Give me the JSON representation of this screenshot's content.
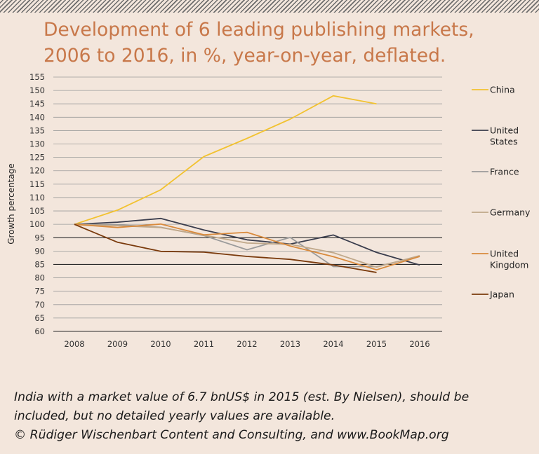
{
  "title_line1": "Development of 6 leading publishing markets,",
  "title_line2": "2006 to 2016, in %, year-on-year, deflated.",
  "footnote": {
    "line1": "India with a market value of 6.7 bnUS$ in 2015 (est. By Nielsen), should be",
    "line2": "included, but no detailed yearly values are available.",
    "line3": "© Rüdiger Wischenbart Content and Consulting, and www.BookMap.org"
  },
  "chart_data": {
    "type": "line",
    "title": "Development of 6 leading publishing markets, 2006 to 2016, in %, year-on-year, deflated.",
    "xlabel": "",
    "ylabel": "Growth percentage",
    "categories": [
      "2008",
      "2009",
      "2010",
      "2011",
      "2012",
      "2013",
      "2014",
      "2015",
      "2016"
    ],
    "ylim": [
      60,
      155
    ],
    "yticks": [
      60,
      65,
      70,
      75,
      80,
      85,
      90,
      95,
      100,
      105,
      110,
      115,
      120,
      125,
      130,
      135,
      140,
      145,
      150,
      155
    ],
    "grid": true,
    "legend_position": "right",
    "series": [
      {
        "name": "China",
        "color": "#f2c230",
        "values": [
          100,
          105.3,
          112.9,
          125.3,
          132.1,
          139.3,
          148,
          145,
          null
        ]
      },
      {
        "name": "United States",
        "color": "#3a3d4d",
        "values": [
          100,
          100.8,
          102.2,
          97.9,
          94.2,
          92.6,
          96,
          89.5,
          84.8
        ]
      },
      {
        "name": "France",
        "color": "#9b9b9b",
        "values": [
          100,
          99.8,
          98.9,
          95.8,
          90.5,
          95.1,
          84.2,
          84.2,
          88
        ]
      },
      {
        "name": "Germany",
        "color": "#c0a88a",
        "values": [
          100,
          99.5,
          98.8,
          95.9,
          93,
          92.5,
          89.4,
          84,
          88.3
        ]
      },
      {
        "name": "United Kingdom",
        "color": "#d98a3c",
        "values": [
          100,
          98.8,
          100.1,
          96.1,
          97,
          91.9,
          87.9,
          83,
          88
        ]
      },
      {
        "name": "Japan",
        "color": "#7a3a0c",
        "values": [
          100,
          93.3,
          89.9,
          89.6,
          88,
          86.9,
          84.8,
          82,
          null
        ]
      }
    ],
    "legend": [
      {
        "label": "China",
        "lines": [
          "China"
        ]
      },
      {
        "label": "United States",
        "lines": [
          "United",
          "States"
        ]
      },
      {
        "label": "France",
        "lines": [
          "France"
        ]
      },
      {
        "label": "Germany",
        "lines": [
          "Germany"
        ]
      },
      {
        "label": "United Kingdom",
        "lines": [
          "United",
          "Kingdom"
        ]
      },
      {
        "label": "Japan",
        "lines": [
          "Japan"
        ]
      }
    ]
  }
}
